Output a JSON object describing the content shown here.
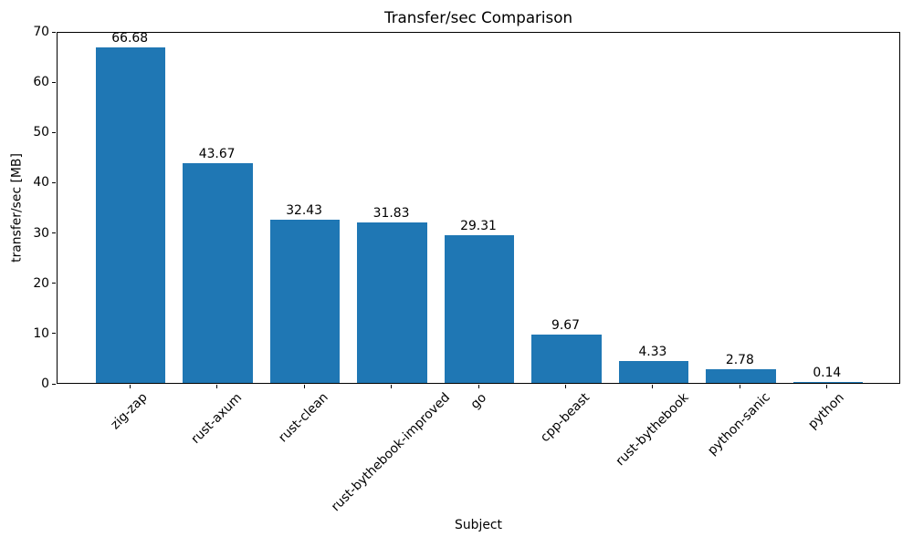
{
  "chart_data": {
    "type": "bar",
    "title": "Transfer/sec Comparison",
    "xlabel": "Subject",
    "ylabel": "transfer/sec [MB]",
    "categories": [
      "zig-zap",
      "rust-axum",
      "rust-clean",
      "rust-bythebook-improved",
      "go",
      "cpp-beast",
      "rust-bythebook",
      "python-sanic",
      "python"
    ],
    "values": [
      66.68,
      43.67,
      32.43,
      31.83,
      29.31,
      9.67,
      4.33,
      2.78,
      0.14
    ],
    "bar_labels": [
      "66.68",
      "43.67",
      "32.43",
      "31.83",
      "29.31",
      "9.67",
      "4.33",
      "2.78",
      "0.14"
    ],
    "ylim": [
      0,
      70
    ],
    "yticks": [
      0,
      10,
      20,
      30,
      40,
      50,
      60,
      70
    ],
    "ytick_labels": [
      "0",
      "10",
      "20",
      "30",
      "40",
      "50",
      "60",
      "70"
    ],
    "x_tick_rotation_deg": 45,
    "bar_color": "#1f77b4",
    "axis_color": "#000000",
    "text_color": "#000000",
    "background_color": "#ffffff",
    "grid": false,
    "legend": null
  }
}
